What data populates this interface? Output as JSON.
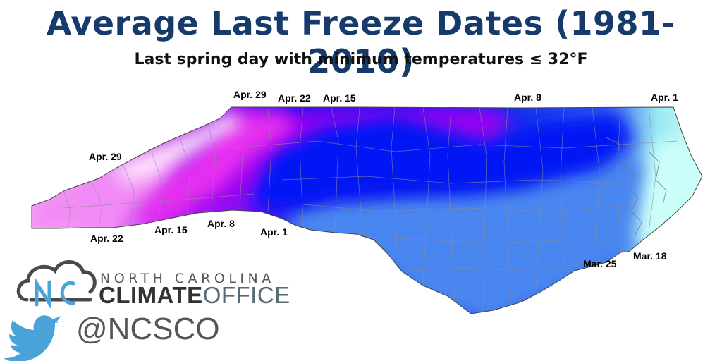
{
  "title": "Average Last Freeze Dates (1981-2010)",
  "subtitle": "Last spring day with minimum temperatures ≤ 32°F",
  "map": {
    "region": "North Carolina",
    "colors": {
      "mar18": "#ccfffa",
      "mar25": "#4a86f0",
      "apr1": "#0019f5",
      "apr8": "#9a00f2",
      "apr15": "#e52ff0",
      "apr22": "#f28af5",
      "apr29": "#fce8fb"
    },
    "labels": {
      "apr29_top": "Apr. 29",
      "apr22_top": "Apr. 22",
      "apr15_top": "Apr. 15",
      "apr8_top": "Apr. 8",
      "apr1_top": "Apr. 1",
      "apr29_left": "Apr. 29",
      "apr22_bottom": "Apr. 22",
      "apr15_bottom": "Apr. 15",
      "apr8_bottom": "Apr. 8",
      "apr1_bottom": "Apr. 1",
      "mar25": "Mar. 25",
      "mar18": "Mar. 18"
    }
  },
  "branding": {
    "line1": "NORTH CAROLINA",
    "line2_bold": "CLIMATE",
    "line2_thin": "OFFICE",
    "logo_letters": "NC",
    "handle": "@NCSCO",
    "twitter_icon": "twitter-bird-icon",
    "cloud_icon": "cloud-logo-icon"
  }
}
